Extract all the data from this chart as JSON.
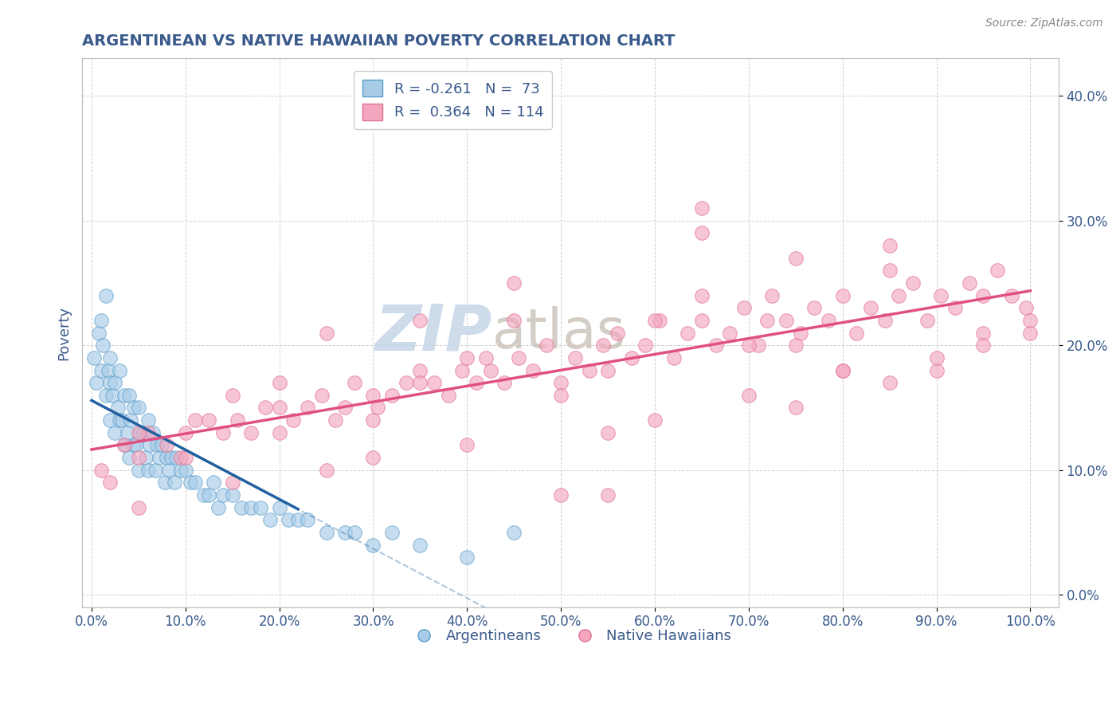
{
  "title": "ARGENTINEAN VS NATIVE HAWAIIAN POVERTY CORRELATION CHART",
  "source": "Source: ZipAtlas.com",
  "ylabel": "Poverty",
  "xlim": [
    -1,
    103
  ],
  "ylim": [
    -1,
    43
  ],
  "xticks": [
    0,
    10,
    20,
    30,
    40,
    50,
    60,
    70,
    80,
    90,
    100
  ],
  "yticks": [
    0,
    10,
    20,
    30,
    40
  ],
  "legend_label1": "Argentineans",
  "legend_label2": "Native Hawaiians",
  "r1": -0.261,
  "n1": 73,
  "r2": 0.364,
  "n2": 114,
  "color_blue_fill": "#a8cce8",
  "color_blue_edge": "#5b9dc9",
  "color_blue_line": "#2060a0",
  "color_pink_fill": "#f4a8c0",
  "color_pink_edge": "#e07090",
  "color_pink_line": "#e05080",
  "title_color": "#3a5a8c",
  "source_color": "#888888",
  "axis_color": "#bbbbbb",
  "grid_color": "#cccccc",
  "watermark_zip": "ZIP",
  "watermark_atlas": "atlas",
  "watermark_color_zip": "#c8d8e8",
  "watermark_color_atlas": "#d0c8c0",
  "arg_x": [
    0.3,
    0.5,
    0.8,
    1.0,
    1.0,
    1.2,
    1.5,
    1.5,
    1.8,
    2.0,
    2.0,
    2.0,
    2.2,
    2.5,
    2.5,
    2.8,
    3.0,
    3.0,
    3.2,
    3.5,
    3.5,
    3.8,
    4.0,
    4.0,
    4.2,
    4.5,
    4.5,
    4.8,
    5.0,
    5.0,
    5.2,
    5.5,
    5.8,
    6.0,
    6.0,
    6.2,
    6.5,
    6.8,
    7.0,
    7.2,
    7.5,
    7.8,
    8.0,
    8.2,
    8.5,
    8.8,
    9.0,
    9.5,
    10.0,
    10.5,
    11.0,
    12.0,
    12.5,
    13.0,
    13.5,
    14.0,
    15.0,
    16.0,
    17.0,
    18.0,
    19.0,
    20.0,
    21.0,
    22.0,
    23.0,
    25.0,
    27.0,
    28.0,
    30.0,
    32.0,
    35.0,
    40.0,
    45.0
  ],
  "arg_y": [
    19,
    17,
    21,
    22,
    18,
    20,
    24,
    16,
    18,
    19,
    14,
    17,
    16,
    17,
    13,
    15,
    18,
    14,
    14,
    16,
    12,
    13,
    16,
    11,
    14,
    15,
    12,
    12,
    15,
    10,
    13,
    13,
    11,
    14,
    10,
    12,
    13,
    10,
    12,
    11,
    12,
    9,
    11,
    10,
    11,
    9,
    11,
    10,
    10,
    9,
    9,
    8,
    8,
    9,
    7,
    8,
    8,
    7,
    7,
    7,
    6,
    7,
    6,
    6,
    6,
    5,
    5,
    5,
    4,
    5,
    4,
    3,
    5
  ],
  "haw_x": [
    1.0,
    2.0,
    3.5,
    5.0,
    6.0,
    8.0,
    9.5,
    11.0,
    12.5,
    14.0,
    15.5,
    17.0,
    18.5,
    20.0,
    21.5,
    23.0,
    24.5,
    26.0,
    27.0,
    28.0,
    30.0,
    30.5,
    32.0,
    33.5,
    35.0,
    36.5,
    38.0,
    39.5,
    41.0,
    42.0,
    42.5,
    44.0,
    45.5,
    47.0,
    48.5,
    50.0,
    51.5,
    53.0,
    54.5,
    56.0,
    57.5,
    59.0,
    60.5,
    62.0,
    63.5,
    65.0,
    66.5,
    68.0,
    69.5,
    71.0,
    72.0,
    72.5,
    74.0,
    75.5,
    77.0,
    78.5,
    80.0,
    81.5,
    83.0,
    84.5,
    86.0,
    87.5,
    89.0,
    90.5,
    92.0,
    93.5,
    95.0,
    96.5,
    98.0,
    99.5,
    15.0,
    25.0,
    35.0,
    45.0,
    55.0,
    65.0,
    75.0,
    85.0,
    95.0,
    20.0,
    40.0,
    60.0,
    80.0,
    100.0,
    10.0,
    30.0,
    50.0,
    70.0,
    90.0,
    5.0,
    45.0,
    65.0,
    85.0,
    55.0,
    75.0,
    35.0,
    25.0,
    15.0,
    70.0,
    80.0,
    90.0,
    60.0,
    50.0,
    40.0,
    30.0,
    20.0,
    10.0,
    5.0,
    95.0,
    100.0,
    85.0,
    75.0,
    65.0,
    55.0
  ],
  "haw_y": [
    10,
    9,
    12,
    11,
    13,
    12,
    11,
    14,
    14,
    13,
    14,
    13,
    15,
    13,
    14,
    15,
    16,
    14,
    15,
    17,
    16,
    15,
    16,
    17,
    18,
    17,
    16,
    18,
    17,
    19,
    18,
    17,
    19,
    18,
    20,
    17,
    19,
    18,
    20,
    21,
    19,
    20,
    22,
    19,
    21,
    22,
    20,
    21,
    23,
    20,
    22,
    24,
    22,
    21,
    23,
    22,
    24,
    21,
    23,
    22,
    24,
    25,
    22,
    24,
    23,
    25,
    24,
    26,
    24,
    23,
    16,
    21,
    17,
    22,
    18,
    24,
    20,
    26,
    21,
    15,
    19,
    14,
    18,
    22,
    11,
    14,
    16,
    20,
    18,
    13,
    25,
    31,
    28,
    13,
    27,
    22,
    10,
    9,
    16,
    18,
    19,
    22,
    8,
    12,
    11,
    17,
    13,
    7,
    20,
    21,
    17,
    15,
    29,
    8
  ]
}
